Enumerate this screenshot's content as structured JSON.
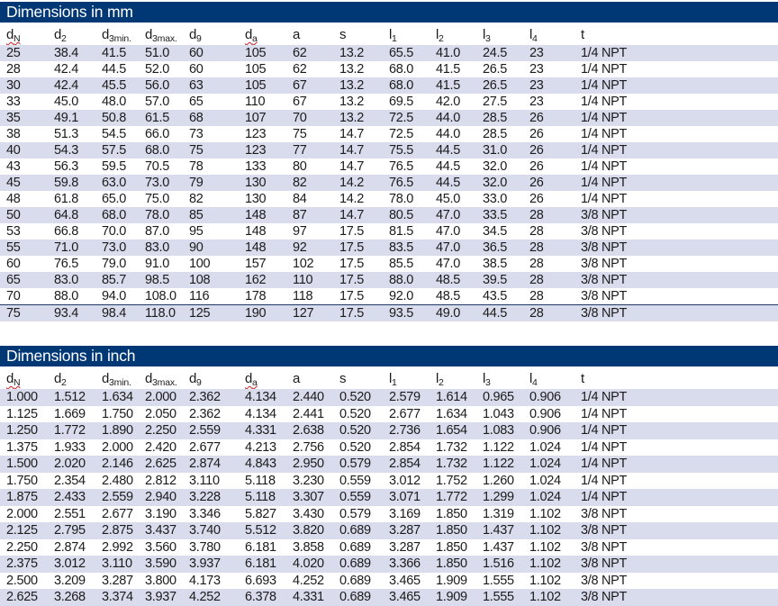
{
  "colors": {
    "title_bar_bg": "#003875",
    "title_bar_text": "#ffffff",
    "row_stripe": "#d9dcec",
    "body_text": "#1b1b1b",
    "spellcheck_squiggle": "#d02020",
    "rule_line": "#1f3864"
  },
  "columns": [
    {
      "id": "dN",
      "base": "d",
      "sub": "N",
      "squiggle": true
    },
    {
      "id": "d2",
      "base": "d",
      "sub": "2",
      "squiggle": false
    },
    {
      "id": "d3min",
      "base": "d",
      "sub": "3min.",
      "squiggle": false
    },
    {
      "id": "d3max",
      "base": "d",
      "sub": "3max.",
      "squiggle": false
    },
    {
      "id": "d9",
      "base": "d",
      "sub": "9",
      "squiggle": false
    },
    {
      "id": "da",
      "base": "d",
      "sub": "a",
      "squiggle": true
    },
    {
      "id": "a",
      "base": "a",
      "sub": "",
      "squiggle": false
    },
    {
      "id": "s",
      "base": "s",
      "sub": "",
      "squiggle": false
    },
    {
      "id": "l1",
      "base": "l",
      "sub": "1",
      "squiggle": false
    },
    {
      "id": "l2",
      "base": "l",
      "sub": "2",
      "squiggle": false
    },
    {
      "id": "l3",
      "base": "l",
      "sub": "3",
      "squiggle": false
    },
    {
      "id": "l4",
      "base": "l",
      "sub": "4",
      "squiggle": false
    },
    {
      "id": "t",
      "base": "t",
      "sub": "",
      "squiggle": false
    }
  ],
  "tables": [
    {
      "title": "Dimensions in mm",
      "rule_above_last_row": true,
      "rows": [
        [
          "25",
          "38.4",
          "41.5",
          "51.0",
          "60",
          "105",
          "62",
          "13.2",
          "65.5",
          "41.0",
          "24.5",
          "23",
          "1/4 NPT"
        ],
        [
          "28",
          "42.4",
          "44.5",
          "52.0",
          "60",
          "105",
          "62",
          "13.2",
          "68.0",
          "41.5",
          "26.5",
          "23",
          "1/4 NPT"
        ],
        [
          "30",
          "42.4",
          "45.5",
          "56.0",
          "63",
          "105",
          "67",
          "13.2",
          "68.0",
          "41.5",
          "26.5",
          "23",
          "1/4 NPT"
        ],
        [
          "33",
          "45.0",
          "48.0",
          "57.0",
          "65",
          "110",
          "67",
          "13.2",
          "69.5",
          "42.0",
          "27.5",
          "23",
          "1/4 NPT"
        ],
        [
          "35",
          "49.1",
          "50.8",
          "61.5",
          "68",
          "107",
          "70",
          "13.2",
          "72.5",
          "44.0",
          "28.5",
          "26",
          "1/4 NPT"
        ],
        [
          "38",
          "51.3",
          "54.5",
          "66.0",
          "73",
          "123",
          "75",
          "14.7",
          "72.5",
          "44.0",
          "28.5",
          "26",
          "1/4 NPT"
        ],
        [
          "40",
          "54.3",
          "57.5",
          "68.0",
          "75",
          "123",
          "77",
          "14.7",
          "75.5",
          "44.5",
          "31.0",
          "26",
          "1/4 NPT"
        ],
        [
          "43",
          "56.3",
          "59.5",
          "70.5",
          "78",
          "133",
          "80",
          "14.7",
          "76.5",
          "44.5",
          "32.0",
          "26",
          "1/4 NPT"
        ],
        [
          "45",
          "59.8",
          "63.0",
          "73.0",
          "79",
          "130",
          "82",
          "14.2",
          "76.5",
          "44.5",
          "32.0",
          "26",
          "1/4 NPT"
        ],
        [
          "48",
          "61.8",
          "65.0",
          "75.0",
          "82",
          "130",
          "84",
          "14.2",
          "78.0",
          "45.0",
          "33.0",
          "26",
          "1/4 NPT"
        ],
        [
          "50",
          "64.8",
          "68.0",
          "78.0",
          "85",
          "148",
          "87",
          "14.7",
          "80.5",
          "47.0",
          "33.5",
          "28",
          "3/8 NPT"
        ],
        [
          "53",
          "66.8",
          "70.0",
          "87.0",
          "95",
          "148",
          "97",
          "17.5",
          "81.5",
          "47.0",
          "34.5",
          "28",
          "3/8 NPT"
        ],
        [
          "55",
          "71.0",
          "73.0",
          "83.0",
          "90",
          "148",
          "92",
          "17.5",
          "83.5",
          "47.0",
          "36.5",
          "28",
          "3/8 NPT"
        ],
        [
          "60",
          "76.5",
          "79.0",
          "91.0",
          "100",
          "157",
          "102",
          "17.5",
          "85.5",
          "47.0",
          "38.5",
          "28",
          "3/8 NPT"
        ],
        [
          "65",
          "83.0",
          "85.7",
          "98.5",
          "108",
          "162",
          "110",
          "17.5",
          "88.0",
          "48.5",
          "39.5",
          "28",
          "3/8 NPT"
        ],
        [
          "70",
          "88.0",
          "94.0",
          "108.0",
          "116",
          "178",
          "118",
          "17.5",
          "92.0",
          "48.5",
          "43.5",
          "28",
          "3/8 NPT"
        ],
        [
          "75",
          "93.4",
          "98.4",
          "118.0",
          "125",
          "190",
          "127",
          "17.5",
          "93.5",
          "49.0",
          "44.5",
          "28",
          "3/8 NPT"
        ]
      ]
    },
    {
      "title": "Dimensions in inch",
      "rule_above_last_row": false,
      "rows": [
        [
          "1.000",
          "1.512",
          "1.634",
          "2.000",
          "2.362",
          "4.134",
          "2.440",
          "0.520",
          "2.579",
          "1.614",
          "0.965",
          "0.906",
          "1/4 NPT"
        ],
        [
          "1.125",
          "1.669",
          "1.750",
          "2.050",
          "2.362",
          "4.134",
          "2.441",
          "0.520",
          "2.677",
          "1.634",
          "1.043",
          "0.906",
          "1/4 NPT"
        ],
        [
          "1.250",
          "1.772",
          "1.890",
          "2.250",
          "2.559",
          "4.331",
          "2.638",
          "0.520",
          "2.736",
          "1.654",
          "1.083",
          "0.906",
          "1/4 NPT"
        ],
        [
          "1.375",
          "1.933",
          "2.000",
          "2.420",
          "2.677",
          "4.213",
          "2.756",
          "0.520",
          "2.854",
          "1.732",
          "1.122",
          "1.024",
          "1/4 NPT"
        ],
        [
          "1.500",
          "2.020",
          "2.146",
          "2.625",
          "2.874",
          "4.843",
          "2.950",
          "0.579",
          "2.854",
          "1.732",
          "1.122",
          "1.024",
          "1/4 NPT"
        ],
        [
          "1.750",
          "2.354",
          "2.480",
          "2.812",
          "3.110",
          "5.118",
          "3.230",
          "0.559",
          "3.012",
          "1.752",
          "1.260",
          "1.024",
          "1/4 NPT"
        ],
        [
          "1.875",
          "2.433",
          "2.559",
          "2.940",
          "3.228",
          "5.118",
          "3.307",
          "0.559",
          "3.071",
          "1.772",
          "1.299",
          "1.024",
          "1/4 NPT"
        ],
        [
          "2.000",
          "2.551",
          "2.677",
          "3.190",
          "3.346",
          "5.827",
          "3.430",
          "0.579",
          "3.169",
          "1.850",
          "1.319",
          "1.102",
          "3/8 NPT"
        ],
        [
          "2.125",
          "2.795",
          "2.875",
          "3.437",
          "3.740",
          "5.512",
          "3.820",
          "0.689",
          "3.287",
          "1.850",
          "1.437",
          "1.102",
          "3/8 NPT"
        ],
        [
          "2.250",
          "2.874",
          "2.992",
          "3.560",
          "3.780",
          "6.181",
          "3.858",
          "0.689",
          "3.287",
          "1.850",
          "1.437",
          "1.102",
          "3/8 NPT"
        ],
        [
          "2.375",
          "3.012",
          "3.110",
          "3.590",
          "3.937",
          "6.181",
          "4.020",
          "0.689",
          "3.366",
          "1.850",
          "1.516",
          "1.102",
          "3/8 NPT"
        ],
        [
          "2.500",
          "3.209",
          "3.287",
          "3.800",
          "4.173",
          "6.693",
          "4.252",
          "0.689",
          "3.465",
          "1.909",
          "1.555",
          "1.102",
          "3/8 NPT"
        ],
        [
          "2.625",
          "3.268",
          "3.374",
          "3.937",
          "4.252",
          "6.378",
          "4.331",
          "0.689",
          "3.465",
          "1.909",
          "1.555",
          "1.102",
          "3/8 NPT"
        ]
      ]
    }
  ]
}
